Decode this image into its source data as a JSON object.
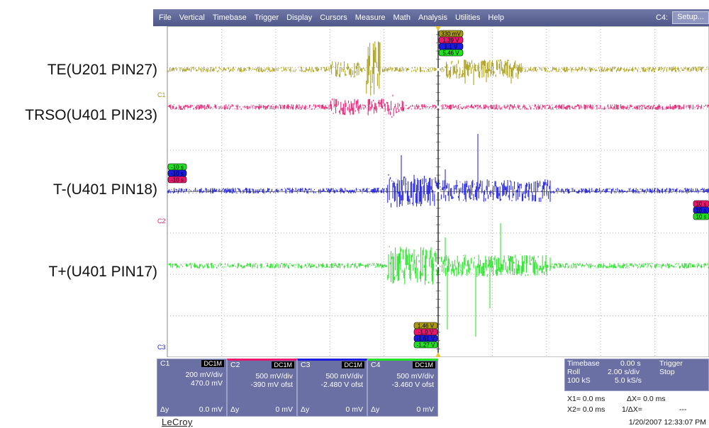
{
  "menu": {
    "items": [
      "File",
      "Vertical",
      "Timebase",
      "Trigger",
      "Display",
      "Cursors",
      "Measure",
      "Math",
      "Analysis",
      "Utilities",
      "Help"
    ],
    "channel_label": "C4:",
    "setup_label": "Setup..."
  },
  "trace_labels": {
    "te": "TE(U201 PIN27)",
    "trso": "TRSO(U401 PIN23)",
    "tminus": "T-(U401 PIN18)",
    "tplus": "T+(U401 PIN17)"
  },
  "markers": {
    "c1": "C1",
    "c2": "C2",
    "c3": "C3"
  },
  "colors": {
    "c1": "#a89b12",
    "c2": "#e8186e",
    "c3": "#1a1ae0",
    "c4": "#22e022",
    "panel": "#6a70a4"
  },
  "cursor_tags_top": [
    "330 mV",
    "1.39 V",
    "1.1 V",
    "5.46 V"
  ],
  "cursor_tags_left": [
    "-10 s",
    "-10 s",
    "-10 s"
  ],
  "cursor_tags_right": [
    "10 s",
    "10 s",
    "10 s"
  ],
  "cursor_tags_bottom": [
    "1.46 V",
    "-1.0 V",
    "-1.61 V",
    "-1.27 V"
  ],
  "channels": [
    {
      "name": "C1",
      "coupling": "DC1M",
      "scale": "200 mV/div",
      "offset": "470.0 mV",
      "dy_label": "Δy",
      "dy_value": "0.0 mV"
    },
    {
      "name": "C2",
      "coupling": "DC1M",
      "scale": "500 mV/div",
      "offset": "-390 mV ofst",
      "dy_label": "Δy",
      "dy_value": "0 mV"
    },
    {
      "name": "C3",
      "coupling": "DC1M",
      "scale": "500 mV/div",
      "offset": "-2.480 V ofst",
      "dy_label": "Δy",
      "dy_value": "0 mV"
    },
    {
      "name": "C4",
      "coupling": "DC1M",
      "scale": "500 mV/div",
      "offset": "-3.460 V ofst",
      "dy_label": "Δy",
      "dy_value": "0 mV"
    }
  ],
  "timebase": {
    "label": "Timebase",
    "delay": "0.00 s",
    "mode": "Roll",
    "time_per_div": "2.00 s/div",
    "samples": "100 kS",
    "sample_rate": "5.0 kS/s"
  },
  "trigger": {
    "label": "Trigger",
    "state": "Stop"
  },
  "measurements": {
    "x1": "X1=  0.0 ms",
    "dx": "ΔX=  0.0 ms",
    "x2": "X2=  0.0 ms",
    "inv_dx": "1/ΔX=",
    "inv_dx_value": "---"
  },
  "brand": "LeCroy",
  "datetime": "1/20/2007 12:33:07 PM"
}
